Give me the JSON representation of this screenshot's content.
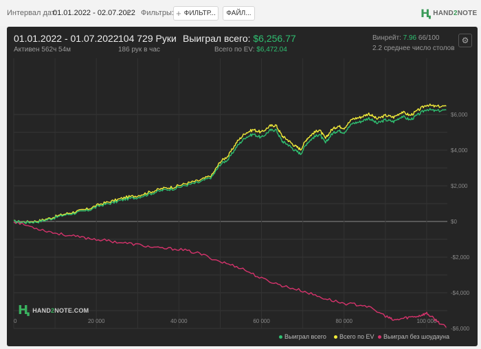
{
  "topbar": {
    "date_label": "Интервал дат:",
    "date_value": "01.01.2022 - 02.07.2022",
    "filters_label": "Фильтры:",
    "filter_button": "ФИЛЬТР...",
    "file_button": "ФАЙЛ...",
    "logo_text_a": "HAND",
    "logo_text_b": "2",
    "logo_text_c": "NOTE"
  },
  "summary": {
    "period": "01.01.2022 - 01.07.2022",
    "active": "Активен 562ч 54м",
    "hands": "104 729 Руки",
    "hands_per_hour": "186 рук в час",
    "won_label": "Выиграл всего:",
    "won_value": "$6,256.77",
    "ev_label": "Всего по EV:",
    "ev_value": "$6,472.04",
    "winrate_label": "Винрейт:",
    "winrate_value": "7.96",
    "winrate_suffix": "66/100",
    "tables": "2.2 среднее число столов"
  },
  "watermark": {
    "text_a": "HAND",
    "text_b": "2",
    "text_c": "NOTE.COM"
  },
  "chart_data": {
    "type": "line",
    "x_ticks": [
      "0",
      "20 000",
      "40 000",
      "60 000",
      "80 000",
      "100 000"
    ],
    "y_ticks": [
      "$6,000",
      "$4,000",
      "$2,000",
      "$0",
      "-$2,000",
      "-$4,000",
      "-$6,000"
    ],
    "xlim": [
      0,
      105000
    ],
    "ylim": [
      -6000,
      6600
    ],
    "grid": true,
    "legend_position": "bottom-right",
    "colors": {
      "won": "#2fbf71",
      "ev": "#f2ec3a",
      "nosd": "#d6336c"
    },
    "series": [
      {
        "name": "Выиграл всего",
        "key": "won",
        "x": [
          0,
          3000,
          6000,
          9000,
          12000,
          15000,
          18000,
          21000,
          24000,
          27000,
          30000,
          33000,
          36000,
          39000,
          42000,
          45000,
          48000,
          50000,
          52000,
          54000,
          56000,
          58000,
          60000,
          62000,
          63500,
          65000,
          66500,
          68000,
          69500,
          71000,
          72500,
          74000,
          75500,
          77000,
          78500,
          80000,
          82000,
          84000,
          86000,
          88000,
          90000,
          92000,
          94000,
          96000,
          98000,
          100000,
          102000,
          104729
        ],
        "y": [
          0,
          -50,
          -10,
          150,
          350,
          480,
          620,
          900,
          1050,
          1250,
          1350,
          1550,
          1750,
          1850,
          2050,
          2200,
          2500,
          3200,
          3500,
          4200,
          4700,
          4900,
          4700,
          5100,
          5150,
          4500,
          4300,
          4000,
          3800,
          4400,
          4700,
          4900,
          4400,
          4900,
          5100,
          5000,
          5500,
          5600,
          5800,
          5500,
          5700,
          5600,
          5900,
          5700,
          6000,
          6300,
          6200,
          6250
        ]
      },
      {
        "name": "Всего по EV",
        "key": "ev",
        "x": [
          0,
          3000,
          6000,
          9000,
          12000,
          15000,
          18000,
          21000,
          24000,
          27000,
          30000,
          33000,
          36000,
          39000,
          42000,
          45000,
          48000,
          50000,
          52000,
          54000,
          56000,
          58000,
          60000,
          62000,
          63500,
          65000,
          66500,
          68000,
          69500,
          71000,
          72500,
          74000,
          75500,
          77000,
          78500,
          80000,
          82000,
          84000,
          86000,
          88000,
          90000,
          92000,
          94000,
          96000,
          98000,
          100000,
          102000,
          104729
        ],
        "y": [
          0,
          -30,
          30,
          200,
          400,
          550,
          700,
          980,
          1150,
          1350,
          1450,
          1650,
          1850,
          1950,
          2150,
          2300,
          2600,
          3350,
          3700,
          4450,
          4950,
          5150,
          5000,
          5350,
          5400,
          4800,
          4550,
          4250,
          4050,
          4650,
          4950,
          5150,
          4650,
          5150,
          5350,
          5250,
          5750,
          5850,
          6050,
          5750,
          5950,
          5850,
          6150,
          5950,
          6250,
          6550,
          6450,
          6470
        ]
      },
      {
        "name": "Выиграл без шоудауна",
        "key": "nosd",
        "x": [
          0,
          5000,
          10000,
          15000,
          20000,
          25000,
          30000,
          35000,
          40000,
          45000,
          50000,
          55000,
          60000,
          65000,
          70000,
          75000,
          80000,
          85000,
          90000,
          92000,
          95000,
          98000,
          100000,
          102000,
          104729
        ],
        "y": [
          0,
          -350,
          -650,
          -850,
          -1000,
          -1150,
          -1300,
          -1500,
          -1550,
          -1800,
          -2250,
          -2600,
          -3200,
          -3600,
          -3900,
          -4300,
          -4600,
          -4700,
          -5300,
          -5550,
          -5400,
          -5300,
          -5150,
          -5500,
          -5950
        ]
      }
    ]
  }
}
